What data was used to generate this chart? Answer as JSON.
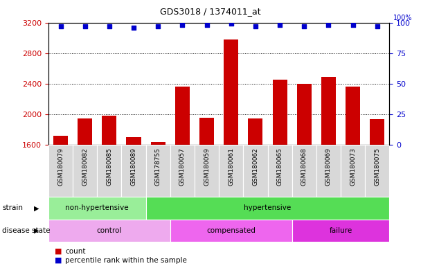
{
  "title": "GDS3018 / 1374011_at",
  "samples": [
    "GSM180079",
    "GSM180082",
    "GSM180085",
    "GSM180089",
    "GSM178755",
    "GSM180057",
    "GSM180059",
    "GSM180061",
    "GSM180062",
    "GSM180065",
    "GSM180068",
    "GSM180069",
    "GSM180073",
    "GSM180075"
  ],
  "counts": [
    1720,
    1950,
    1980,
    1700,
    1640,
    2360,
    1960,
    2980,
    1950,
    2450,
    2400,
    2490,
    2360,
    1940
  ],
  "percentile": [
    97,
    97,
    97,
    96,
    97,
    98,
    98,
    99,
    97,
    98,
    97,
    98,
    98,
    97
  ],
  "ylim_left": [
    1600,
    3200
  ],
  "ylim_right": [
    0,
    100
  ],
  "yticks_left": [
    1600,
    2000,
    2400,
    2800,
    3200
  ],
  "yticks_right": [
    0,
    25,
    50,
    75,
    100
  ],
  "bar_color": "#cc0000",
  "scatter_color": "#0000cc",
  "strain_groups": [
    {
      "label": "non-hypertensive",
      "start": 0,
      "end": 4,
      "color": "#99ee99"
    },
    {
      "label": "hypertensive",
      "start": 4,
      "end": 14,
      "color": "#55dd55"
    }
  ],
  "disease_groups": [
    {
      "label": "control",
      "start": 0,
      "end": 5,
      "color": "#eeaaee"
    },
    {
      "label": "compensated",
      "start": 5,
      "end": 10,
      "color": "#ee66ee"
    },
    {
      "label": "failure",
      "start": 10,
      "end": 14,
      "color": "#dd33dd"
    }
  ],
  "legend_count_color": "#cc0000",
  "legend_percentile_color": "#0000cc",
  "tick_label_color_left": "#cc0000",
  "tick_label_color_right": "#0000cc",
  "plot_bg": "#ffffff",
  "label_row_bg": "#d8d8d8"
}
